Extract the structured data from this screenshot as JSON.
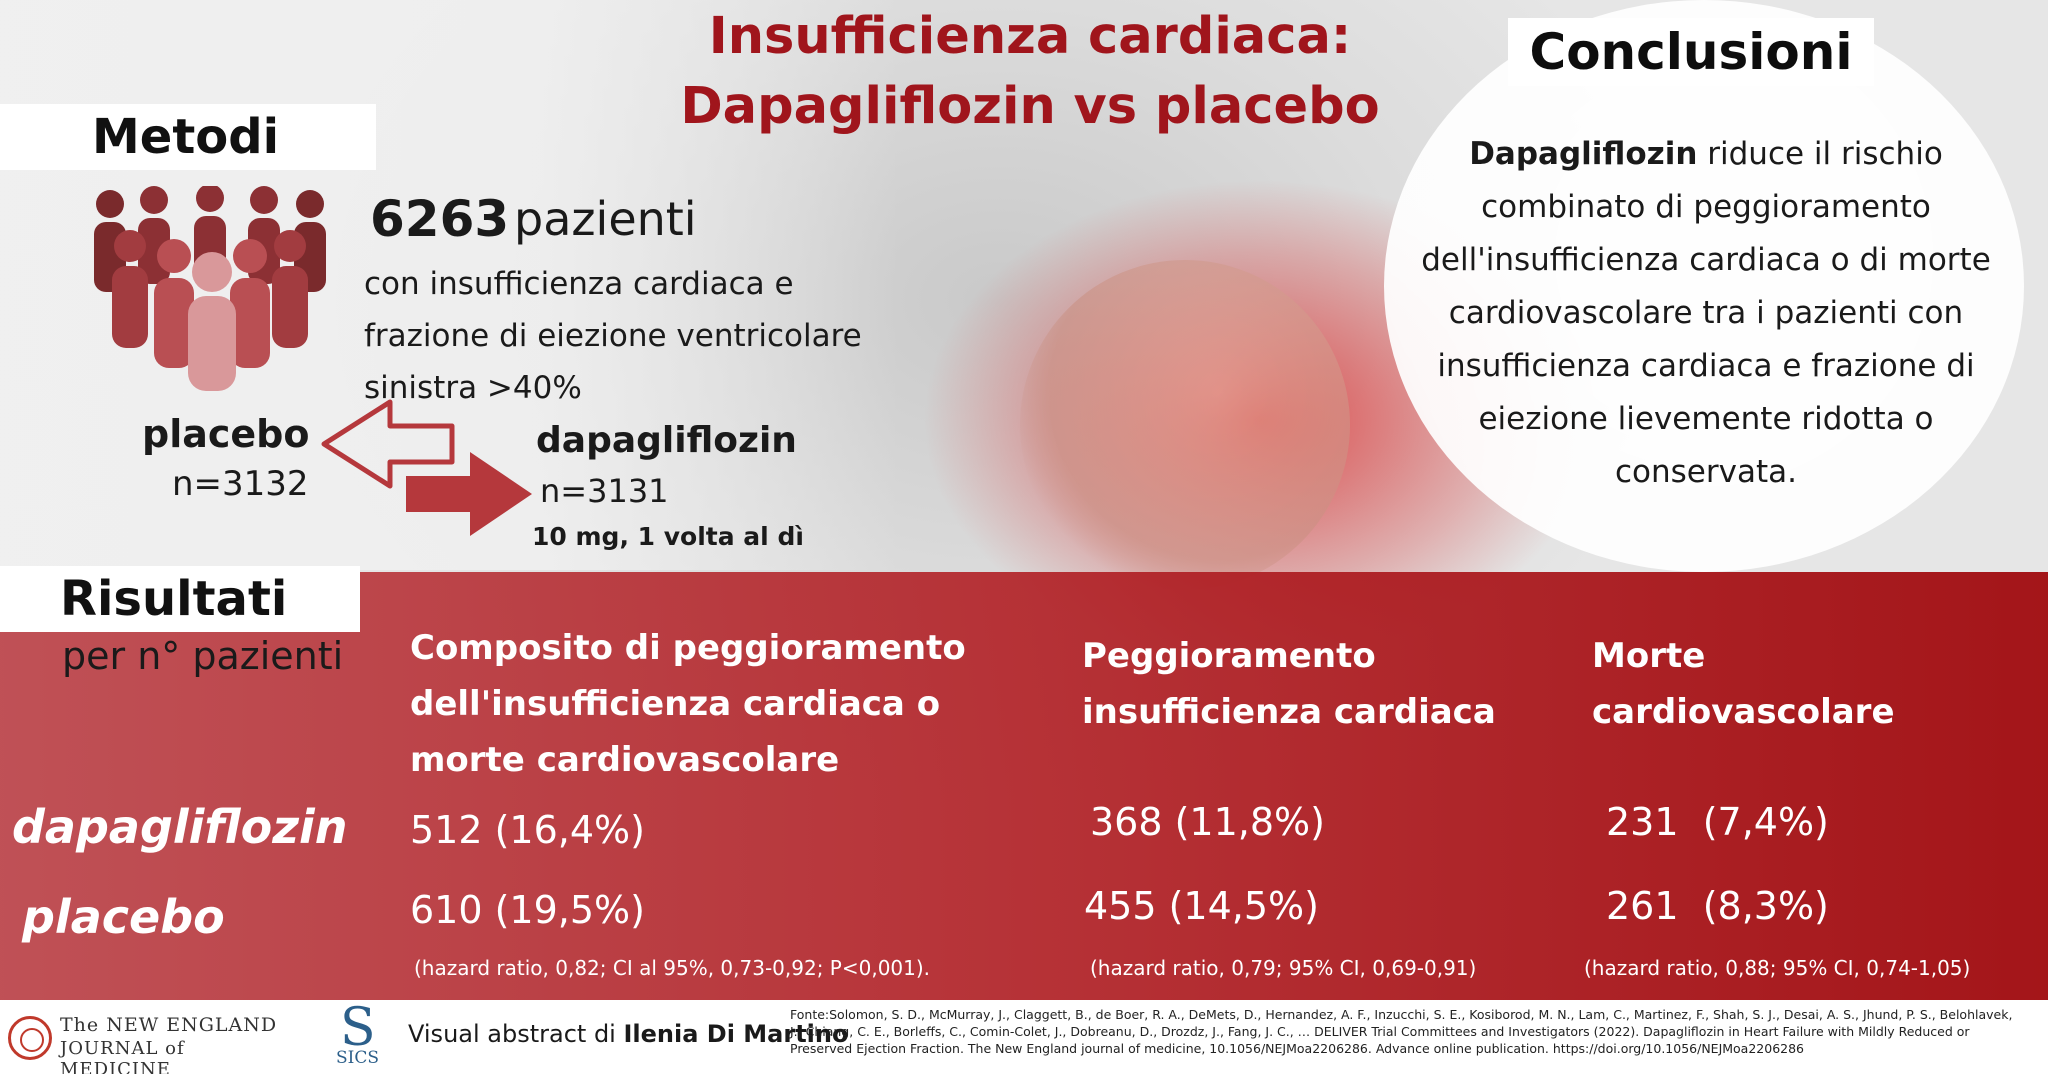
{
  "title": {
    "line1": "Insufficienza cardiaca:",
    "line2": "Dapagliflozin vs placebo"
  },
  "methods": {
    "heading": "Metodi",
    "patients_count": "6263",
    "patients_word": "pazienti",
    "description": "con insufficienza cardiaca e frazione di eiezione ventricolare sinistra >40%",
    "placebo_label": "placebo",
    "placebo_n": "n=3132",
    "dapagliflozin_label": "dapagliflozin",
    "dapagliflozin_n": "n=3131",
    "dapagliflozin_dose": "10 mg, 1 volta al dì"
  },
  "conclusions": {
    "heading": "Conclusioni",
    "bold_lead": "Dapagliflozin",
    "text": " riduce il rischio combinato di peggioramento dell'insufficienza cardiaca o di morte cardiovascolare tra i pazienti con insufficienza cardiaca e frazione di eiezione lievemente ridotta o conservata."
  },
  "results": {
    "heading": "Risultati",
    "subheading": "per n° pazienti",
    "row_labels": {
      "dapagliflozin": "dapagliflozin",
      "placebo": "placebo"
    },
    "columns": [
      {
        "heading": "Composito di peggioramento dell'insufficienza cardiaca o morte cardiovascolare",
        "dapagliflozin": "512 (16,4%)",
        "placebo": "610 (19,5%)",
        "hazard": "(hazard ratio, 0,82; CI al 95%, 0,73-0,92; P<0,001)."
      },
      {
        "heading": "Peggioramento insufficienza cardiaca",
        "dapagliflozin": "368 (11,8%)",
        "placebo": "455 (14,5%)",
        "hazard": "(hazard ratio, 0,79; 95% CI, 0,69-0,91)"
      },
      {
        "heading": "Morte cardiovascolare",
        "dapagliflozin": "231  (7,4%)",
        "placebo": "261  (8,3%)",
        "hazard": "(hazard ratio, 0,88; 95% CI, 0,74-1,05)"
      }
    ]
  },
  "footer": {
    "nejm_line1": "The NEW ENGLAND",
    "nejm_line2": "JOURNAL of MEDICINE",
    "sics_letter": "S",
    "sics_text": "SICS",
    "credit_prefix": "Visual abstract di ",
    "credit_author": "Ilenia Di Martino",
    "source": "Fonte:Solomon, S. D., McMurray, J., Claggett, B., de Boer, R. A., DeMets, D., Hernandez, A. F., Inzucchi, S. E., Kosiborod, M. N., Lam, C., Martinez, F., Shah, S. J., Desai, A. S., Jhund, P. S., Belohlavek, J., Chiang, C. E., Borleffs, C., Comin-Colet, J., Dobreanu, D., Drozdz, J., Fang, J. C., … DELIVER Trial Committees and Investigators (2022). Dapagliflozin in Heart Failure with Mildly Reduced or Preserved Ejection Fraction. The New England journal of medicine, 10.1056/NEJMoa2206286. Advance online publication. https://doi.org/10.1056/NEJMoa2206286"
  },
  "colors": {
    "title_red": "#a0151c",
    "band_red": "#b2232a",
    "arrow_red": "#b5383c"
  },
  "icons": {
    "people": "people-group-icon",
    "arrows": "swap-arrows-icon",
    "nejm": "nejm-seal-icon",
    "sics": "sics-logo-icon"
  }
}
